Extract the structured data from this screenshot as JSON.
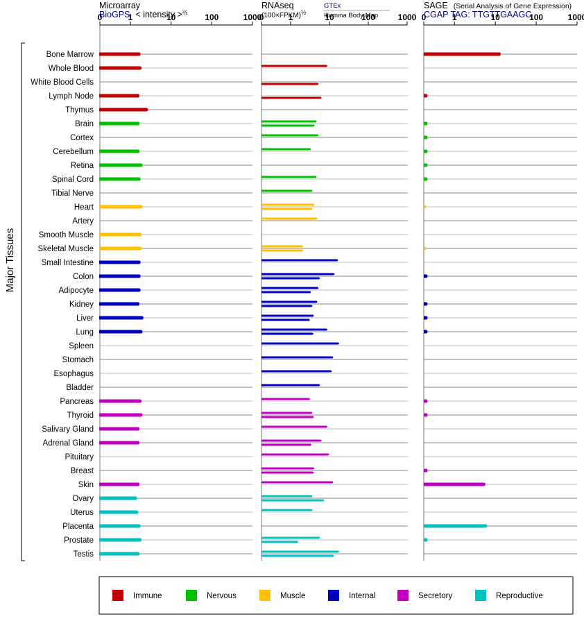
{
  "side_label": "Major Tissues",
  "panels": [
    {
      "title": "Microarray",
      "subtitle_link": "BioGPS",
      "subtitle_note": "< intensity >",
      "subtitle_sup": "⅔",
      "ticks": [
        "0",
        "1",
        "10",
        "100",
        "1000"
      ]
    },
    {
      "title": "RNAseq",
      "subtitle_note": "(100×FPKM)",
      "subtitle_sup": "½",
      "source_top": "GTEx",
      "source_bottom": "Illumina Body Map",
      "ticks": [
        "0",
        "1",
        "10",
        "100",
        "1000"
      ]
    },
    {
      "title": "SAGE",
      "title_note": "(Serial Analysis of Gene Expression)",
      "subtitle_note": "CGAP TAG: TTGTTGAAGC",
      "ticks": [
        "0",
        "1",
        "10",
        "100",
        "1000"
      ]
    }
  ],
  "legend": [
    {
      "key": "immune",
      "label": "Immune",
      "color": "#c00000"
    },
    {
      "key": "nervous",
      "label": "Nervous",
      "color": "#00c000"
    },
    {
      "key": "muscle",
      "label": "Muscle",
      "color": "#ffc000"
    },
    {
      "key": "internal",
      "label": "Internal",
      "color": "#0000c0"
    },
    {
      "key": "secretory",
      "label": "Secretory",
      "color": "#c000c0"
    },
    {
      "key": "reproductive",
      "label": "Reproductive",
      "color": "#00c0c0"
    }
  ],
  "chart_data": {
    "type": "bar",
    "orientation": "horizontal",
    "scale": "log (0, 1, 10, 100, 1000)",
    "xlim": [
      0,
      1000
    ],
    "grid": true,
    "legend_position": "bottom",
    "categories": [
      "Bone Marrow",
      "Whole Blood",
      "White Blood Cells",
      "Lymph Node",
      "Thymus",
      "Brain",
      "Cortex",
      "Cerebellum",
      "Retina",
      "Spinal Cord",
      "Tibial Nerve",
      "Heart",
      "Artery",
      "Smooth Muscle",
      "Skeletal Muscle",
      "Small Intestine",
      "Colon",
      "Adipocyte",
      "Kidney",
      "Liver",
      "Lung",
      "Spleen",
      "Stomach",
      "Esophagus",
      "Bladder",
      "Pancreas",
      "Thyroid",
      "Salivary Gland",
      "Adrenal Gland",
      "Pituitary",
      "Breast",
      "Skin",
      "Ovary",
      "Uterus",
      "Placenta",
      "Prostate",
      "Testis"
    ],
    "groups": [
      "immune",
      "immune",
      "immune",
      "immune",
      "immune",
      "nervous",
      "nervous",
      "nervous",
      "nervous",
      "nervous",
      "nervous",
      "muscle",
      "muscle",
      "muscle",
      "muscle",
      "internal",
      "internal",
      "internal",
      "internal",
      "internal",
      "internal",
      "internal",
      "internal",
      "internal",
      "internal",
      "secretory",
      "secretory",
      "secretory",
      "secretory",
      "secretory",
      "secretory",
      "secretory",
      "reproductive",
      "reproductive",
      "reproductive",
      "reproductive",
      "reproductive"
    ],
    "series": [
      {
        "name": "Microarray",
        "values": [
          1.7,
          1.8,
          null,
          1.6,
          2.6,
          1.6,
          null,
          1.6,
          1.9,
          1.7,
          null,
          1.9,
          null,
          1.8,
          1.8,
          1.7,
          1.7,
          1.7,
          1.6,
          2.0,
          1.9,
          null,
          null,
          null,
          null,
          1.8,
          1.9,
          1.6,
          1.6,
          null,
          null,
          1.6,
          1.4,
          1.5,
          1.7,
          1.8,
          1.6
        ]
      },
      {
        "name": "GTEx",
        "values": [
          null,
          8.5,
          null,
          null,
          null,
          4.5,
          5.0,
          3.2,
          null,
          4.5,
          3.5,
          4.0,
          4.7,
          null,
          2.0,
          16.0,
          13.0,
          5.0,
          4.7,
          3.8,
          8.5,
          17.0,
          12.0,
          11.0,
          5.5,
          3.0,
          3.5,
          8.5,
          6.0,
          9.5,
          3.9,
          12.0,
          3.5,
          3.5,
          null,
          5.5,
          17.0
        ]
      },
      {
        "name": "Illumina Body Map",
        "values": [
          null,
          null,
          5.0,
          6.0,
          null,
          4.0,
          null,
          null,
          null,
          null,
          null,
          3.5,
          null,
          null,
          2.0,
          null,
          5.5,
          3.2,
          3.5,
          3.0,
          3.7,
          null,
          null,
          null,
          null,
          null,
          3.8,
          null,
          3.3,
          null,
          3.8,
          null,
          7.0,
          null,
          null,
          1.5,
          12.5
        ]
      },
      {
        "name": "SAGE",
        "values": [
          13.0,
          null,
          null,
          0.1,
          null,
          0.1,
          0.1,
          0.1,
          0.1,
          0.1,
          null,
          0.05,
          null,
          null,
          0.05,
          null,
          0.1,
          null,
          0.1,
          0.1,
          0.1,
          null,
          null,
          null,
          null,
          0.1,
          0.1,
          null,
          null,
          null,
          0.1,
          5.5,
          null,
          null,
          6.0,
          0.1,
          null
        ]
      }
    ]
  }
}
